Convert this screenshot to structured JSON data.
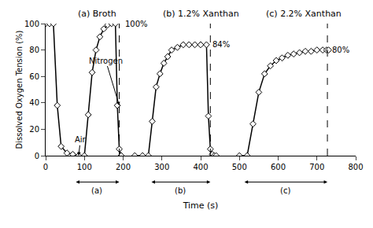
{
  "chart_data": {
    "type": "line",
    "top_labels": [
      "(a) Broth",
      "(b) 1.2% Xanthan",
      "(c) 2.2% Xanthan"
    ],
    "xlabel": "Time (s)",
    "ylabel": "Dissolved Oxygen Tension (%)",
    "xlim": [
      0,
      800
    ],
    "ylim": [
      0,
      100
    ],
    "xticks": [
      0,
      100,
      200,
      300,
      400,
      500,
      600,
      700,
      800
    ],
    "yticks": [
      0,
      20,
      40,
      60,
      80,
      100
    ],
    "grid": false,
    "color": "black",
    "marker": "diamond",
    "series": [
      {
        "x": [
          0,
          10,
          20,
          30,
          40,
          55,
          70,
          85,
          100,
          110,
          120,
          130,
          140,
          150,
          160,
          170,
          180,
          185,
          190,
          195
        ],
        "values": [
          100,
          100,
          100,
          38,
          7,
          2,
          1,
          0,
          0,
          31,
          63,
          80,
          90,
          96,
          99,
          100,
          100,
          38,
          5,
          0
        ]
      },
      {
        "x": [
          230,
          250,
          265,
          275,
          285,
          295,
          305,
          315,
          325,
          340,
          355,
          370,
          385,
          400,
          415,
          420,
          425,
          430,
          435,
          440
        ],
        "values": [
          0,
          0,
          0,
          26,
          52,
          62,
          70,
          75,
          80,
          82,
          84,
          84,
          84,
          84,
          84,
          30,
          5,
          1,
          0,
          0
        ]
      },
      {
        "x": [
          500,
          520,
          535,
          550,
          565,
          580,
          595,
          610,
          625,
          640,
          655,
          670,
          685,
          700,
          715,
          725,
          730
        ],
        "values": [
          0,
          0,
          24,
          48,
          62,
          68,
          72,
          74,
          76,
          77,
          78,
          79,
          79,
          80,
          80,
          80,
          80
        ]
      }
    ],
    "vlines": [
      190,
      425,
      727
    ],
    "annotations": [
      {
        "text": "100%",
        "x": 195,
        "y": 100
      },
      {
        "text": "84%",
        "x": 420,
        "y": 84
      },
      {
        "text": "80%",
        "x": 728,
        "y": 80
      },
      {
        "text": "Nitrogen",
        "x": 155,
        "y": 72,
        "arrow_x": 190,
        "arrow_y": 38
      },
      {
        "text": "Air",
        "x": 90,
        "y": 12,
        "arrow_x": 85,
        "arrow_y": 0
      }
    ],
    "spans": [
      {
        "text": "(a)",
        "from": 75,
        "to": 190
      },
      {
        "text": "(b)",
        "from": 270,
        "to": 425
      },
      {
        "text": "(c)",
        "from": 510,
        "to": 727
      }
    ]
  }
}
